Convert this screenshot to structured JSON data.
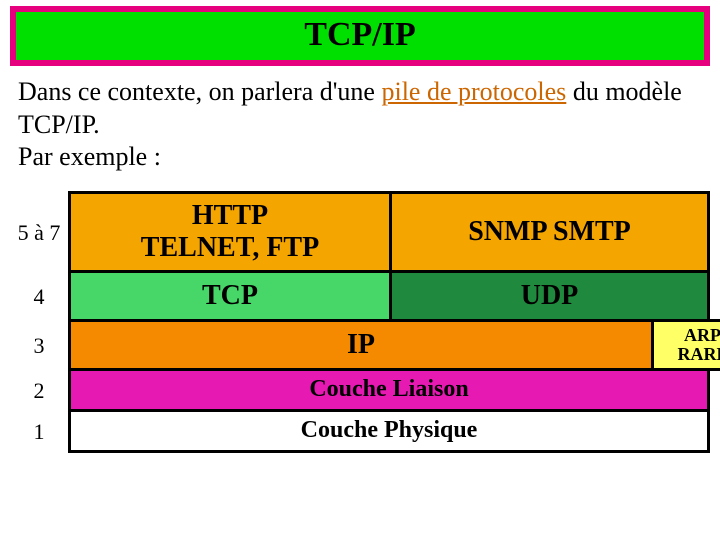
{
  "title": {
    "text": "TCP/IP",
    "background_color": "#00e000",
    "border_color": "#e6007e",
    "text_color": "#000000",
    "fontsize": 34
  },
  "intro": {
    "pre": "Dans ce contexte, on parlera d'une ",
    "link_text": "pile de protocoles",
    "post": " du modèle TCP/IP.\nPar exemple :",
    "link_color": "#cc6600",
    "text_color": "#000000",
    "fontsize": 26
  },
  "layers": {
    "numbers": [
      "5 à 7",
      "4",
      "3",
      "2",
      "1"
    ],
    "row_top": {
      "left": {
        "line1": "HTTP",
        "line2": "TELNET, FTP",
        "bg": "#f5a500"
      },
      "right": {
        "text": "SNMP SMTP",
        "bg": "#f5a500"
      }
    },
    "row_transport": {
      "left": {
        "text": "TCP",
        "bg": "#47d668"
      },
      "right": {
        "text": "UDP",
        "bg": "#1f8a3d",
        "text_color": "#000000"
      }
    },
    "row_ip": {
      "main": {
        "text": "IP",
        "bg": "#f58a00"
      },
      "side": {
        "line1": "ARP",
        "line2": "RARP",
        "bg": "#ffff66"
      }
    },
    "row_link": {
      "text": "Couche Liaison",
      "bg": "#e619b3"
    },
    "row_phys": {
      "text": "Couche Physique",
      "bg": "#ffffff"
    }
  },
  "style": {
    "cell_border_color": "#000000",
    "font_family": "Times New Roman"
  }
}
